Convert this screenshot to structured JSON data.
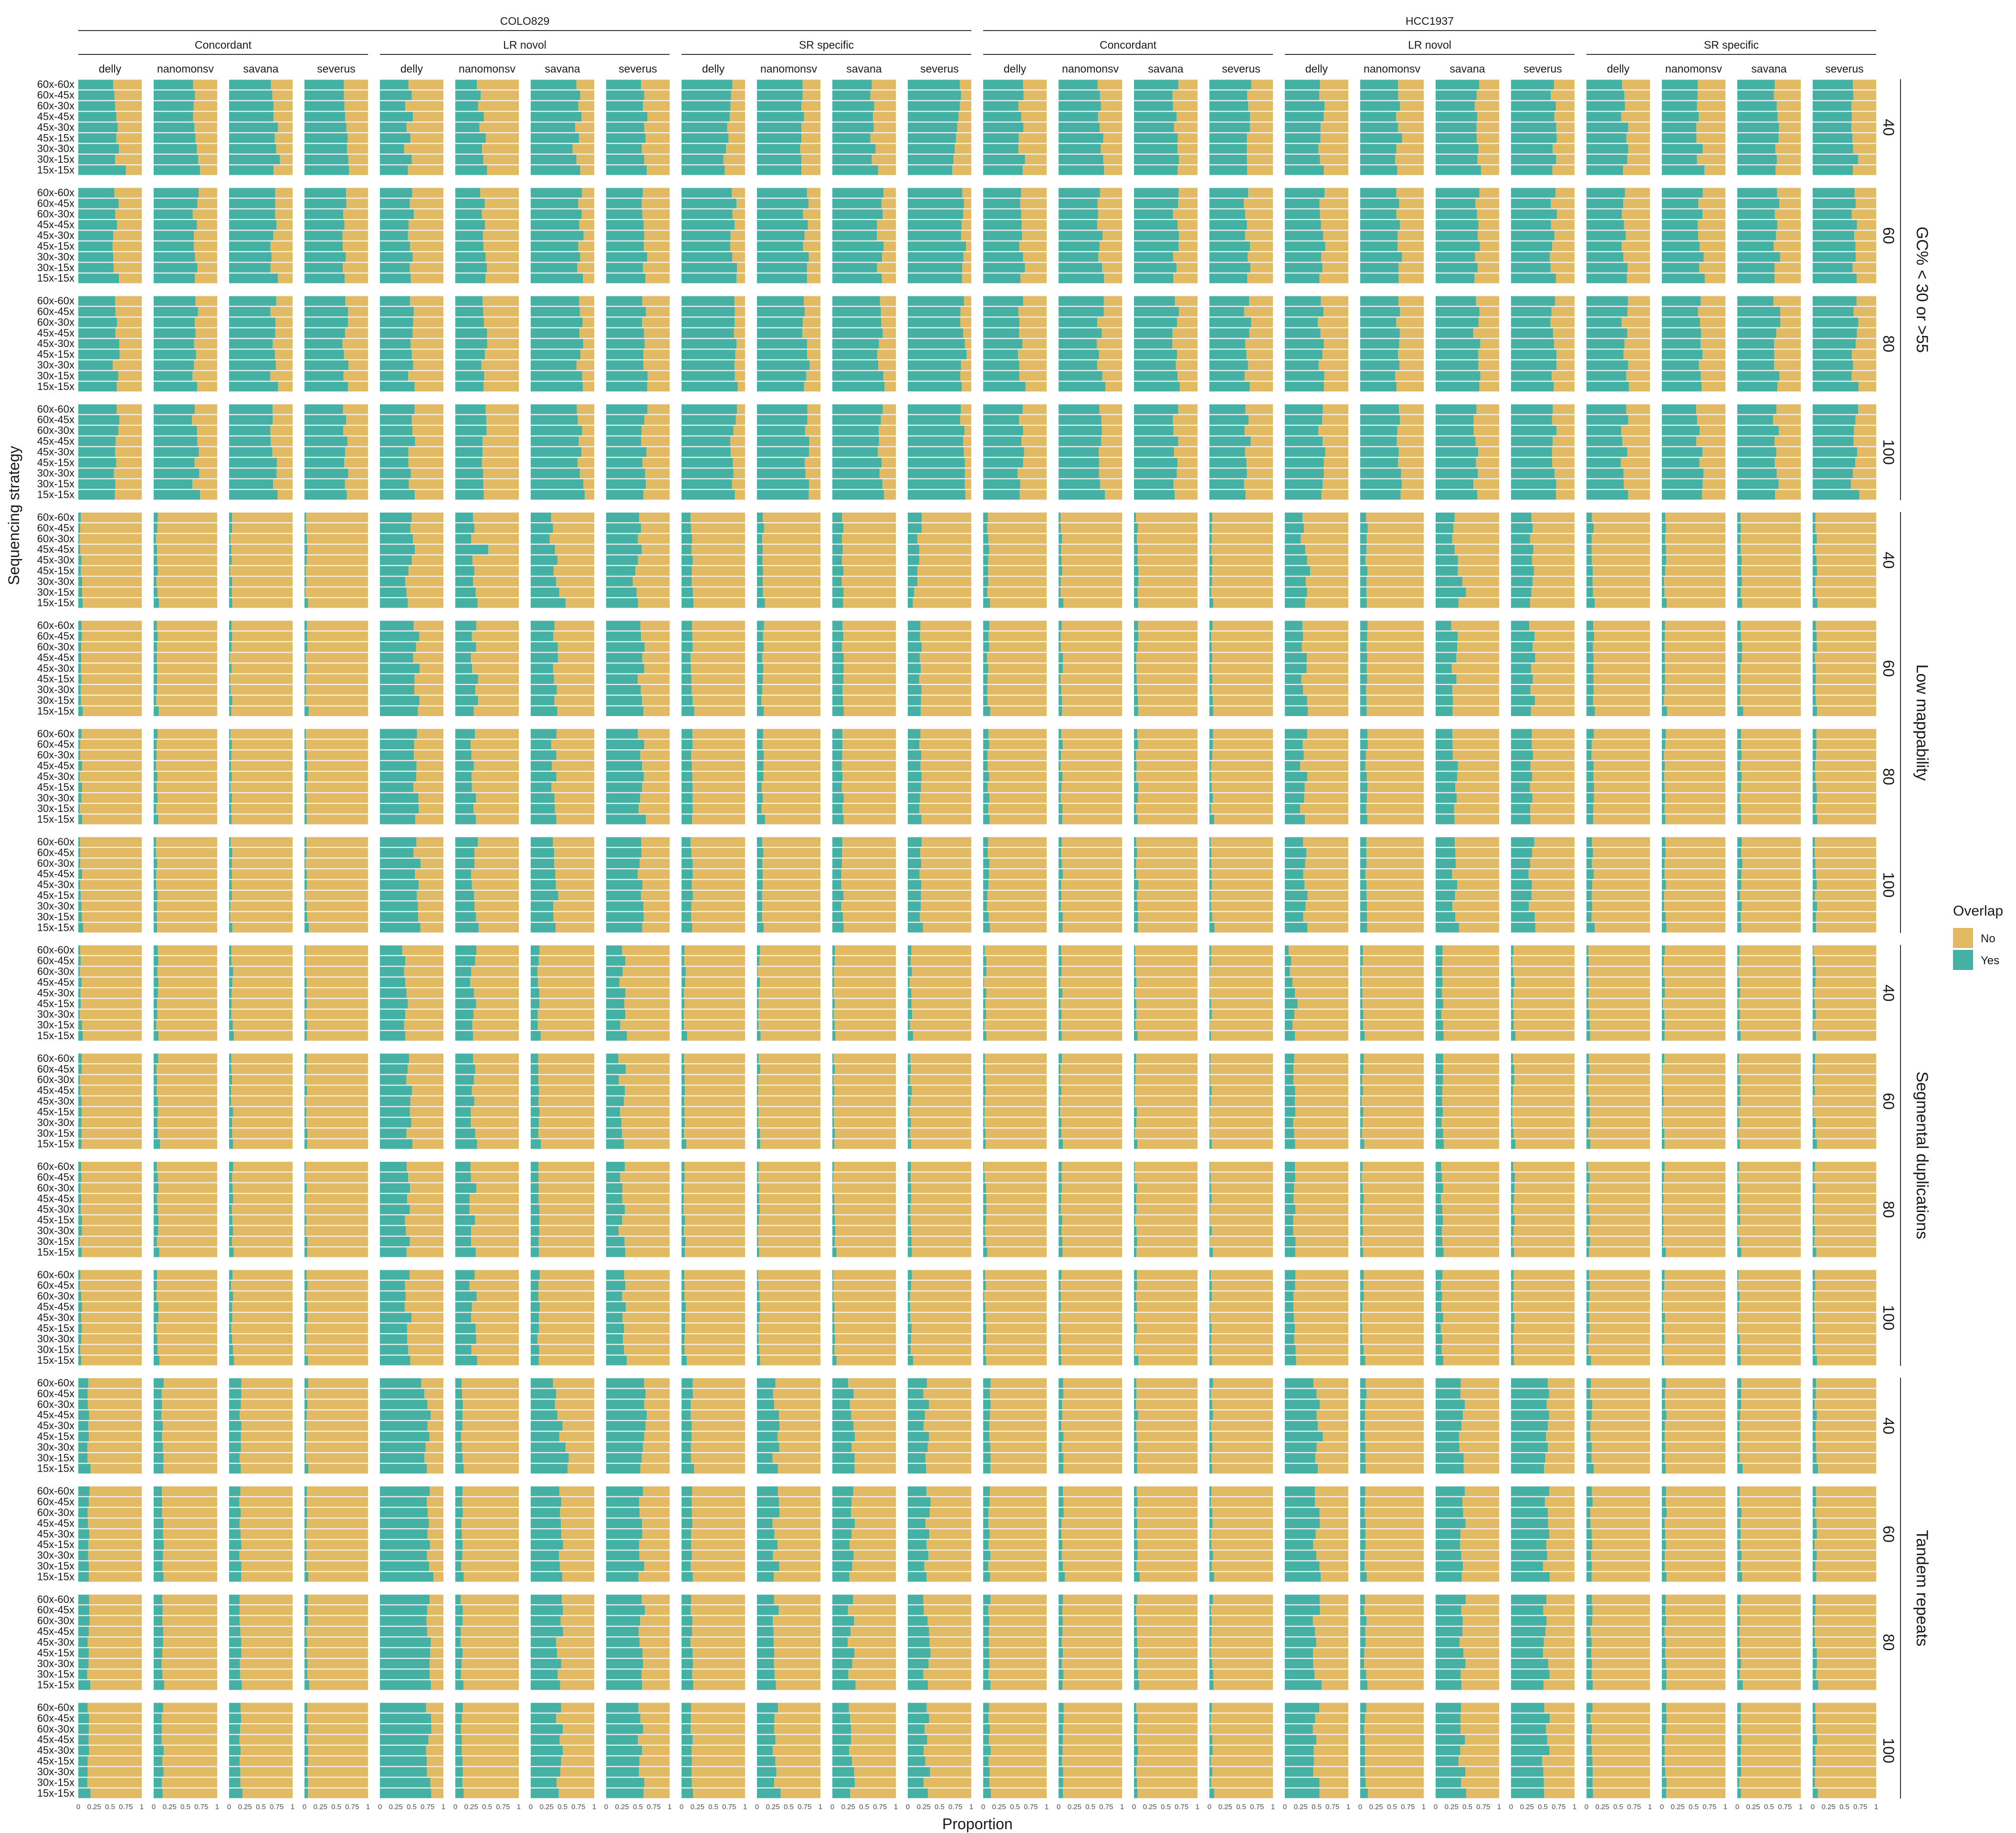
{
  "chart_data": {
    "type": "bar",
    "orientation": "horizontal",
    "stacked": "proportion",
    "xlabel": "Proportion",
    "ylabel": "Sequencing strategy",
    "x_ticks": [
      "0",
      "0.25",
      "0.5",
      "0.75",
      "1"
    ],
    "xlim": [
      0,
      1
    ],
    "y_categories": [
      "60x-60x",
      "60x-45x",
      "60x-30x",
      "45x-45x",
      "45x-30x",
      "45x-15x",
      "30x-30x",
      "30x-15x",
      "15x-15x"
    ],
    "samples": [
      "COLO829",
      "HCC1937"
    ],
    "sv_groups": [
      "Concordant",
      "LR novol",
      "SR specific"
    ],
    "callers": [
      "delly",
      "nanomonsv",
      "savana",
      "severus"
    ],
    "regions": [
      "GC% < 30 or >55",
      "Low mappability",
      "Segmental duplications",
      "Tandem repeats"
    ],
    "thresholds": [
      "40",
      "60",
      "80",
      "100"
    ],
    "legend": {
      "title": "Overlap",
      "placement": "right",
      "entries": [
        {
          "label": "No",
          "color": "#E3BA64"
        },
        {
          "label": "Yes",
          "color": "#45B0A4"
        }
      ]
    },
    "value_description": "Proportion of calls with Overlap = Yes; rows follow y_categories order; panel keys are sample|sv_group|caller|region|threshold",
    "yes_proportion_by_panel": {
      "COLO829|Concordant|delly|GC% < 30 or >55|40": [
        0.55,
        0.57,
        0.58,
        0.6,
        0.62,
        0.6,
        0.64,
        0.58,
        0.75
      ],
      "COLO829|Concordant|nanomonsv|GC% < 30 or >55|40": [
        0.62,
        0.65,
        0.63,
        0.62,
        0.64,
        0.66,
        0.68,
        0.7,
        0.73
      ],
      "COLO829|Concordant|savana|GC% < 30 or >55|40": [
        0.66,
        0.68,
        0.7,
        0.7,
        0.77,
        0.72,
        0.74,
        0.8,
        0.7
      ],
      "COLO829|Concordant|severus|GC% < 30 or >55|40": [
        0.62,
        0.62,
        0.63,
        0.64,
        0.66,
        0.68,
        0.67,
        0.69,
        0.7
      ],
      "COLO829|LR novol|delly|GC% < 30 or >55|40": [
        0.45,
        0.5,
        0.4,
        0.52,
        0.42,
        0.48,
        0.38,
        0.5,
        0.44
      ],
      "COLO829|LR novol|nanomonsv|GC% < 30 or >55|40": [
        0.34,
        0.4,
        0.36,
        0.45,
        0.38,
        0.48,
        0.42,
        0.44,
        0.5
      ],
      "COLO829|LR novol|savana|GC% < 30 or >55|40": [
        0.72,
        0.78,
        0.75,
        0.8,
        0.7,
        0.76,
        0.66,
        0.72,
        0.78
      ],
      "COLO829|LR novol|severus|GC% < 30 or >55|40": [
        0.55,
        0.6,
        0.58,
        0.65,
        0.6,
        0.62,
        0.56,
        0.6,
        0.64
      ],
      "COLO829|SR specific|delly|GC% < 30 or >55|40": [
        0.8,
        0.78,
        0.77,
        0.76,
        0.72,
        0.74,
        0.7,
        0.66,
        0.68
      ],
      "COLO829|SR specific|nanomonsv|GC% < 30 or >55|40": [
        0.72,
        0.72,
        0.7,
        0.74,
        0.7,
        0.7,
        0.68,
        0.7,
        0.7
      ],
      "COLO829|SR specific|savana|GC% < 30 or >55|40": [
        0.62,
        0.6,
        0.66,
        0.64,
        0.65,
        0.6,
        0.68,
        0.62,
        0.72
      ],
      "COLO829|SR specific|severus|GC% < 30 or >55|40": [
        0.82,
        0.84,
        0.82,
        0.8,
        0.78,
        0.76,
        0.74,
        0.72,
        0.7
      ],
      "COLO829|Concordant|delly|Low mappability|40": [
        0.04,
        0.03,
        0.02,
        0.03,
        0.05,
        0.04,
        0.06,
        0.06,
        0.07
      ],
      "COLO829|LR novol|delly|Low mappability|40": [
        0.5,
        0.48,
        0.52,
        0.55,
        0.5,
        0.45,
        0.4,
        0.42,
        0.44
      ],
      "COLO829|LR novol|nanomonsv|Low mappability|40": [
        0.28,
        0.3,
        0.25,
        0.52,
        0.27,
        0.3,
        0.28,
        0.32,
        0.35
      ],
      "COLO829|LR novol|savana|Low mappability|40": [
        0.32,
        0.35,
        0.3,
        0.38,
        0.42,
        0.36,
        0.4,
        0.45,
        0.55
      ],
      "COLO829|LR novol|severus|Low mappability|40": [
        0.52,
        0.55,
        0.5,
        0.56,
        0.5,
        0.46,
        0.42,
        0.48,
        0.5
      ],
      "COLO829|SR specific|severus|Low mappability|40": [
        0.22,
        0.22,
        0.15,
        0.18,
        0.18,
        0.15,
        0.15,
        0.1,
        0.08
      ],
      "HCC1937|LR novol|delly|Low mappability|40": [
        0.28,
        0.3,
        0.25,
        0.32,
        0.35,
        0.4,
        0.33,
        0.35,
        0.32
      ],
      "HCC1937|LR novol|savana|Low mappability|40": [
        0.3,
        0.28,
        0.26,
        0.3,
        0.35,
        0.35,
        0.42,
        0.48,
        0.36
      ],
      "HCC1937|LR novol|severus|Low mappability|40": [
        0.32,
        0.34,
        0.3,
        0.35,
        0.33,
        0.36,
        0.34,
        0.32,
        0.3
      ],
      "COLO829|LR novol|delly|Segmental duplications|40": [
        0.35,
        0.4,
        0.38,
        0.4,
        0.42,
        0.44,
        0.4,
        0.38,
        0.4
      ],
      "HCC1937|LR novol|delly|Segmental duplications|40": [
        0.06,
        0.1,
        0.08,
        0.12,
        0.16,
        0.2,
        0.15,
        0.12,
        0.16
      ],
      "COLO829|LR novol|delly|Tandem repeats|40": [
        0.65,
        0.7,
        0.75,
        0.8,
        0.75,
        0.78,
        0.72,
        0.7,
        0.74
      ],
      "COLO829|LR novol|savana|Tandem repeats|40": [
        0.35,
        0.4,
        0.38,
        0.42,
        0.5,
        0.45,
        0.55,
        0.6,
        0.58
      ],
      "COLO829|LR novol|severus|Tandem repeats|40": [
        0.6,
        0.62,
        0.6,
        0.64,
        0.62,
        0.6,
        0.58,
        0.56,
        0.54
      ],
      "HCC1937|LR novol|delly|Tandem repeats|40": [
        0.45,
        0.5,
        0.55,
        0.5,
        0.52,
        0.6,
        0.5,
        0.48,
        0.52
      ],
      "HCC1937|LR novol|severus|Tandem repeats|40": [
        0.58,
        0.6,
        0.56,
        0.6,
        0.58,
        0.55,
        0.58,
        0.54,
        0.52
      ]
    },
    "yes_baseline_by_cell": {
      "COLO829|Concordant|delly": [
        0.6,
        0.04,
        0.04,
        0.16
      ],
      "COLO829|Concordant|nanomonsv": [
        0.66,
        0.05,
        0.06,
        0.14
      ],
      "COLO829|Concordant|savana": [
        0.7,
        0.03,
        0.05,
        0.18
      ],
      "COLO829|Concordant|severus": [
        0.65,
        0.03,
        0.03,
        0.04
      ],
      "COLO829|LR novol|delly": [
        0.5,
        0.58,
        0.45,
        0.78
      ],
      "COLO829|LR novol|nanomonsv": [
        0.45,
        0.3,
        0.28,
        0.1
      ],
      "COLO829|LR novol|savana": [
        0.78,
        0.38,
        0.12,
        0.45
      ],
      "COLO829|LR novol|severus": [
        0.6,
        0.55,
        0.25,
        0.55
      ],
      "COLO829|SR specific|delly": [
        0.82,
        0.16,
        0.05,
        0.16
      ],
      "COLO829|SR specific|nanomonsv": [
        0.77,
        0.09,
        0.03,
        0.3
      ],
      "COLO829|SR specific|savana": [
        0.75,
        0.16,
        0.03,
        0.3
      ],
      "COLO829|SR specific|severus": [
        0.88,
        0.2,
        0.05,
        0.3
      ],
      "HCC1937|Concordant|delly": [
        0.6,
        0.08,
        0.03,
        0.1
      ],
      "HCC1937|Concordant|nanomonsv": [
        0.66,
        0.05,
        0.04,
        0.06
      ],
      "HCC1937|Concordant|savana": [
        0.65,
        0.05,
        0.03,
        0.05
      ],
      "HCC1937|Concordant|severus": [
        0.6,
        0.04,
        0.02,
        0.04
      ],
      "HCC1937|LR novol|delly": [
        0.58,
        0.3,
        0.15,
        0.5
      ],
      "HCC1937|LR novol|nanomonsv": [
        0.6,
        0.1,
        0.04,
        0.08
      ],
      "HCC1937|LR novol|savana": [
        0.65,
        0.3,
        0.1,
        0.42
      ],
      "HCC1937|LR novol|severus": [
        0.67,
        0.33,
        0.04,
        0.55
      ],
      "HCC1937|SR specific|delly": [
        0.6,
        0.1,
        0.04,
        0.08
      ],
      "HCC1937|SR specific|nanomonsv": [
        0.6,
        0.05,
        0.03,
        0.06
      ],
      "HCC1937|SR specific|savana": [
        0.62,
        0.06,
        0.03,
        0.05
      ],
      "HCC1937|SR specific|severus": [
        0.66,
        0.05,
        0.03,
        0.05
      ]
    }
  }
}
